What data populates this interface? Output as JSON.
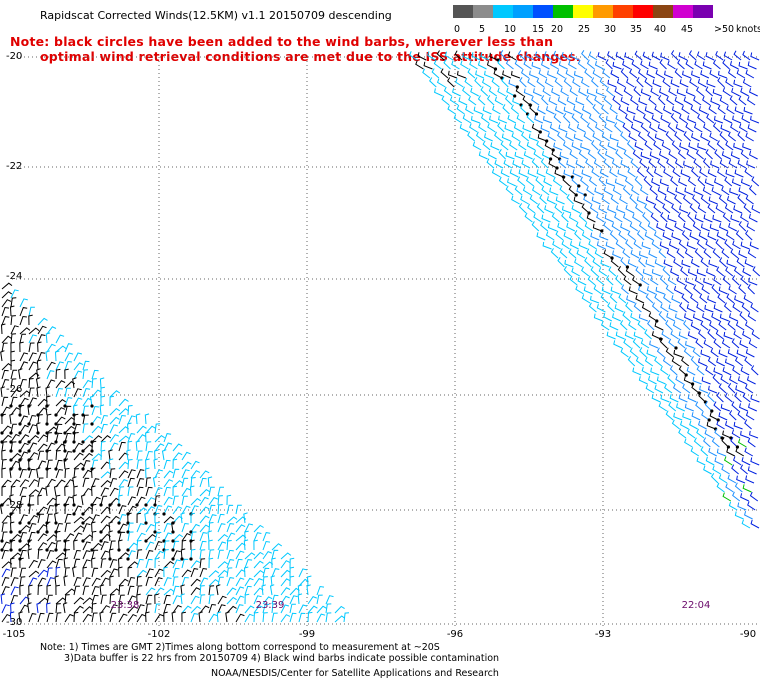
{
  "header": {
    "title": "Rapidscat Corrected Winds(12.5KM) v1.1 20150709 descending",
    "note_line1": "Note: black circles have been added to the wind barbs, wherever less than",
    "note_line2": "optimal wind retrieval conditions are met due to the ISS attitude changes."
  },
  "legend": {
    "labels": [
      "0",
      "5",
      "10",
      "15",
      "20",
      "25",
      "30",
      "35",
      "40",
      "45",
      ">50"
    ],
    "unit": "knots",
    "colors": [
      "#555555",
      "#8c8c8c",
      "#00c8ff",
      "#00a0ff",
      "#0050ff",
      "#00c000",
      "#ffff00",
      "#ff9a00",
      "#ff4000",
      "#ff0000",
      "#8b4513",
      "#d000d0",
      "#7a00b0"
    ]
  },
  "axes": {
    "y_labels": [
      "-20",
      "-22",
      "-24",
      "-26",
      "-28",
      "-30"
    ],
    "x_labels": [
      "-105",
      "-102",
      "-99",
      "-96",
      "-93",
      "-90"
    ]
  },
  "times": [
    "23:38",
    "23:39",
    "22:04"
  ],
  "footer": {
    "line1": "Note: 1) Times are GMT 2)Times along bottom correspond to measurement at ~20S",
    "line2": "3)Data buffer is 22 hrs from 20150709 4) Black wind barbs indicate possible contamination",
    "line3": "NOAA/NESDIS/Center for Satellite Applications and Research"
  },
  "wind_colors": {
    "calm": "#00c8ff",
    "light": "#1e90ff",
    "moderate": "#0020e0",
    "strong": "#00c000",
    "flagged": "#000000"
  }
}
